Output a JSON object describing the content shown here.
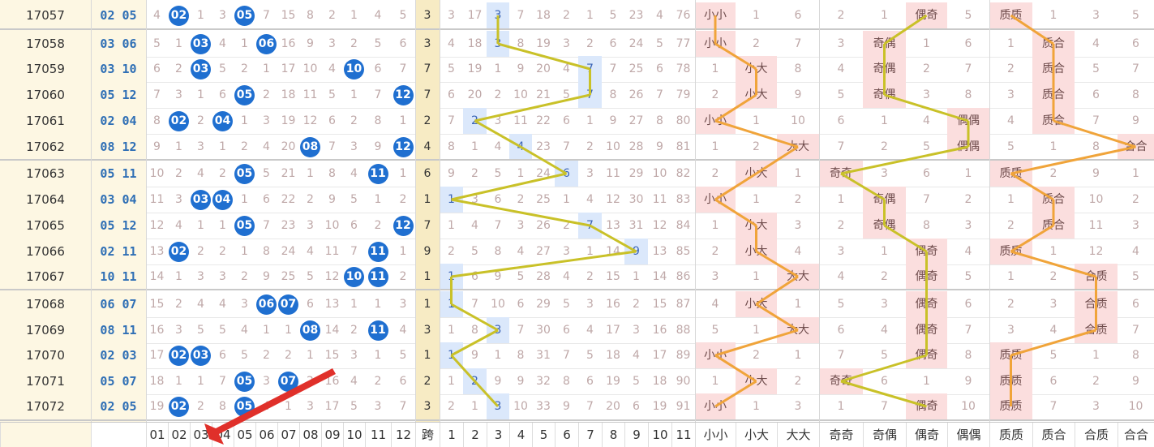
{
  "colors": {
    "ball": "#1f6fd0",
    "span_bg": "#f7ebc4",
    "highlight_bg": "#dbe8fb",
    "pink_bg": "#fbdede",
    "line_yellow": "#c9c128",
    "line_orange": "#f0a43a",
    "arrow": "#e0302a"
  },
  "rows": [
    {
      "issue": "17057",
      "win": "02 05",
      "zone1": [
        "4",
        "02",
        "1",
        "3",
        "05",
        "7",
        "15",
        "8",
        "2",
        "1",
        "4",
        "5"
      ],
      "span": "3",
      "zone2": [
        "3",
        "17",
        "3",
        "7",
        "18",
        "2",
        "1",
        "5",
        "23",
        "4",
        "76"
      ],
      "sz": [
        "小小",
        "1",
        "6"
      ],
      "oe": [
        "2",
        "1",
        "偶奇",
        "5"
      ],
      "pc": [
        "质质",
        "1",
        "3",
        "5"
      ]
    },
    {
      "issue": "17058",
      "win": "03 06",
      "zone1": [
        "5",
        "1",
        "03",
        "4",
        "1",
        "06",
        "16",
        "9",
        "3",
        "2",
        "5",
        "6"
      ],
      "span": "3",
      "zone2": [
        "4",
        "18",
        "3",
        "8",
        "19",
        "3",
        "2",
        "6",
        "24",
        "5",
        "77"
      ],
      "sz": [
        "小小",
        "2",
        "7"
      ],
      "oe": [
        "3",
        "奇偶",
        "1",
        "6"
      ],
      "pc": [
        "1",
        "质合",
        "4",
        "6"
      ]
    },
    {
      "issue": "17059",
      "win": "03 10",
      "zone1": [
        "6",
        "2",
        "03",
        "5",
        "2",
        "1",
        "17",
        "10",
        "4",
        "10",
        "6",
        "7"
      ],
      "span": "7",
      "zone2": [
        "5",
        "19",
        "1",
        "9",
        "20",
        "4",
        "7",
        "7",
        "25",
        "6",
        "78"
      ],
      "sz": [
        "1",
        "小大",
        "8"
      ],
      "oe": [
        "4",
        "奇偶",
        "2",
        "7"
      ],
      "pc": [
        "2",
        "质合",
        "5",
        "7"
      ]
    },
    {
      "issue": "17060",
      "win": "05 12",
      "zone1": [
        "7",
        "3",
        "1",
        "6",
        "05",
        "2",
        "18",
        "11",
        "5",
        "1",
        "7",
        "12"
      ],
      "span": "7",
      "zone2": [
        "6",
        "20",
        "2",
        "10",
        "21",
        "5",
        "7",
        "8",
        "26",
        "7",
        "79"
      ],
      "sz": [
        "2",
        "小大",
        "9"
      ],
      "oe": [
        "5",
        "奇偶",
        "3",
        "8"
      ],
      "pc": [
        "3",
        "质合",
        "6",
        "8"
      ]
    },
    {
      "issue": "17061",
      "win": "02 04",
      "zone1": [
        "8",
        "02",
        "2",
        "04",
        "1",
        "3",
        "19",
        "12",
        "6",
        "2",
        "8",
        "1"
      ],
      "span": "2",
      "zone2": [
        "7",
        "2",
        "3",
        "11",
        "22",
        "6",
        "1",
        "9",
        "27",
        "8",
        "80"
      ],
      "sz": [
        "小小",
        "1",
        "10"
      ],
      "oe": [
        "6",
        "1",
        "4",
        "偶偶"
      ],
      "pc": [
        "4",
        "质合",
        "7",
        "9"
      ]
    },
    {
      "issue": "17062",
      "win": "08 12",
      "zone1": [
        "9",
        "1",
        "3",
        "1",
        "2",
        "4",
        "20",
        "08",
        "7",
        "3",
        "9",
        "12"
      ],
      "span": "4",
      "zone2": [
        "8",
        "1",
        "4",
        "4",
        "23",
        "7",
        "2",
        "10",
        "28",
        "9",
        "81"
      ],
      "sz": [
        "1",
        "2",
        "大大"
      ],
      "oe": [
        "7",
        "2",
        "5",
        "偶偶"
      ],
      "pc": [
        "5",
        "1",
        "8",
        "合合"
      ]
    },
    {
      "issue": "17063",
      "win": "05 11",
      "zone1": [
        "10",
        "2",
        "4",
        "2",
        "05",
        "5",
        "21",
        "1",
        "8",
        "4",
        "11",
        "1"
      ],
      "span": "6",
      "zone2": [
        "9",
        "2",
        "5",
        "1",
        "24",
        "6",
        "3",
        "11",
        "29",
        "10",
        "82"
      ],
      "sz": [
        "2",
        "小大",
        "1"
      ],
      "oe": [
        "奇奇",
        "3",
        "6",
        "1"
      ],
      "pc": [
        "质质",
        "2",
        "9",
        "1"
      ]
    },
    {
      "issue": "17064",
      "win": "03 04",
      "zone1": [
        "11",
        "3",
        "03",
        "04",
        "1",
        "6",
        "22",
        "2",
        "9",
        "5",
        "1",
        "2"
      ],
      "span": "1",
      "zone2": [
        "1",
        "3",
        "6",
        "2",
        "25",
        "1",
        "4",
        "12",
        "30",
        "11",
        "83"
      ],
      "sz": [
        "小小",
        "1",
        "2"
      ],
      "oe": [
        "1",
        "奇偶",
        "7",
        "2"
      ],
      "pc": [
        "1",
        "质合",
        "10",
        "2"
      ]
    },
    {
      "issue": "17065",
      "win": "05 12",
      "zone1": [
        "12",
        "4",
        "1",
        "1",
        "05",
        "7",
        "23",
        "3",
        "10",
        "6",
        "2",
        "12"
      ],
      "span": "7",
      "zone2": [
        "1",
        "4",
        "7",
        "3",
        "26",
        "2",
        "7",
        "13",
        "31",
        "12",
        "84"
      ],
      "sz": [
        "1",
        "小大",
        "3"
      ],
      "oe": [
        "2",
        "奇偶",
        "8",
        "3"
      ],
      "pc": [
        "2",
        "质合",
        "11",
        "3"
      ]
    },
    {
      "issue": "17066",
      "win": "02 11",
      "zone1": [
        "13",
        "02",
        "2",
        "2",
        "1",
        "8",
        "24",
        "4",
        "11",
        "7",
        "11",
        "1"
      ],
      "span": "9",
      "zone2": [
        "2",
        "5",
        "8",
        "4",
        "27",
        "3",
        "1",
        "14",
        "9",
        "13",
        "85"
      ],
      "sz": [
        "2",
        "小大",
        "4"
      ],
      "oe": [
        "3",
        "1",
        "偶奇",
        "4"
      ],
      "pc": [
        "质质",
        "1",
        "12",
        "4"
      ]
    },
    {
      "issue": "17067",
      "win": "10 11",
      "zone1": [
        "14",
        "1",
        "3",
        "3",
        "2",
        "9",
        "25",
        "5",
        "12",
        "10",
        "11",
        "2"
      ],
      "span": "1",
      "zone2": [
        "1",
        "6",
        "9",
        "5",
        "28",
        "4",
        "2",
        "15",
        "1",
        "14",
        "86"
      ],
      "sz": [
        "3",
        "1",
        "大大"
      ],
      "oe": [
        "4",
        "2",
        "偶奇",
        "5"
      ],
      "pc": [
        "1",
        "2",
        "合质",
        "5"
      ]
    },
    {
      "issue": "17068",
      "win": "06 07",
      "zone1": [
        "15",
        "2",
        "4",
        "4",
        "3",
        "06",
        "07",
        "6",
        "13",
        "1",
        "1",
        "3"
      ],
      "span": "1",
      "zone2": [
        "1",
        "7",
        "10",
        "6",
        "29",
        "5",
        "3",
        "16",
        "2",
        "15",
        "87"
      ],
      "sz": [
        "4",
        "小大",
        "1"
      ],
      "oe": [
        "5",
        "3",
        "偶奇",
        "6"
      ],
      "pc": [
        "2",
        "3",
        "合质",
        "6"
      ]
    },
    {
      "issue": "17069",
      "win": "08 11",
      "zone1": [
        "16",
        "3",
        "5",
        "5",
        "4",
        "1",
        "1",
        "08",
        "14",
        "2",
        "11",
        "4"
      ],
      "span": "3",
      "zone2": [
        "1",
        "8",
        "3",
        "7",
        "30",
        "6",
        "4",
        "17",
        "3",
        "16",
        "88"
      ],
      "sz": [
        "5",
        "1",
        "大大"
      ],
      "oe": [
        "6",
        "4",
        "偶奇",
        "7"
      ],
      "pc": [
        "3",
        "4",
        "合质",
        "7"
      ]
    },
    {
      "issue": "17070",
      "win": "02 03",
      "zone1": [
        "17",
        "02",
        "03",
        "6",
        "5",
        "2",
        "2",
        "1",
        "15",
        "3",
        "1",
        "5"
      ],
      "span": "1",
      "zone2": [
        "1",
        "9",
        "1",
        "8",
        "31",
        "7",
        "5",
        "18",
        "4",
        "17",
        "89"
      ],
      "sz": [
        "小小",
        "2",
        "1"
      ],
      "oe": [
        "7",
        "5",
        "偶奇",
        "8"
      ],
      "pc": [
        "质质",
        "5",
        "1",
        "8"
      ]
    },
    {
      "issue": "17071",
      "win": "05 07",
      "zone1": [
        "18",
        "1",
        "1",
        "7",
        "05",
        "3",
        "07",
        "2",
        "16",
        "4",
        "2",
        "6"
      ],
      "span": "2",
      "zone2": [
        "1",
        "2",
        "9",
        "9",
        "32",
        "8",
        "6",
        "19",
        "5",
        "18",
        "90"
      ],
      "sz": [
        "1",
        "小大",
        "2"
      ],
      "oe": [
        "奇奇",
        "6",
        "1",
        "9"
      ],
      "pc": [
        "质质",
        "6",
        "2",
        "9"
      ]
    },
    {
      "issue": "17072",
      "win": "02 05",
      "zone1": [
        "19",
        "02",
        "2",
        "8",
        "05",
        "4",
        "1",
        "3",
        "17",
        "5",
        "3",
        "7"
      ],
      "span": "3",
      "zone2": [
        "2",
        "1",
        "3",
        "10",
        "33",
        "9",
        "7",
        "20",
        "6",
        "19",
        "91"
      ],
      "sz": [
        "小小",
        "1",
        "3"
      ],
      "oe": [
        "1",
        "7",
        "偶奇",
        "10"
      ],
      "pc": [
        "质质",
        "7",
        "3",
        "10"
      ]
    }
  ],
  "footer": {
    "zone1": [
      "01",
      "02",
      "03",
      "04",
      "05",
      "06",
      "07",
      "08",
      "09",
      "10",
      "11",
      "12"
    ],
    "span": "跨",
    "zone2": [
      "1",
      "2",
      "3",
      "4",
      "5",
      "6",
      "7",
      "8",
      "9",
      "10",
      "11"
    ],
    "sz": [
      "小小",
      "小大",
      "大大"
    ],
    "oe": [
      "奇奇",
      "奇偶",
      "偶奇",
      "偶偶"
    ],
    "pc": [
      "质质",
      "质合",
      "合质",
      "合合"
    ]
  }
}
